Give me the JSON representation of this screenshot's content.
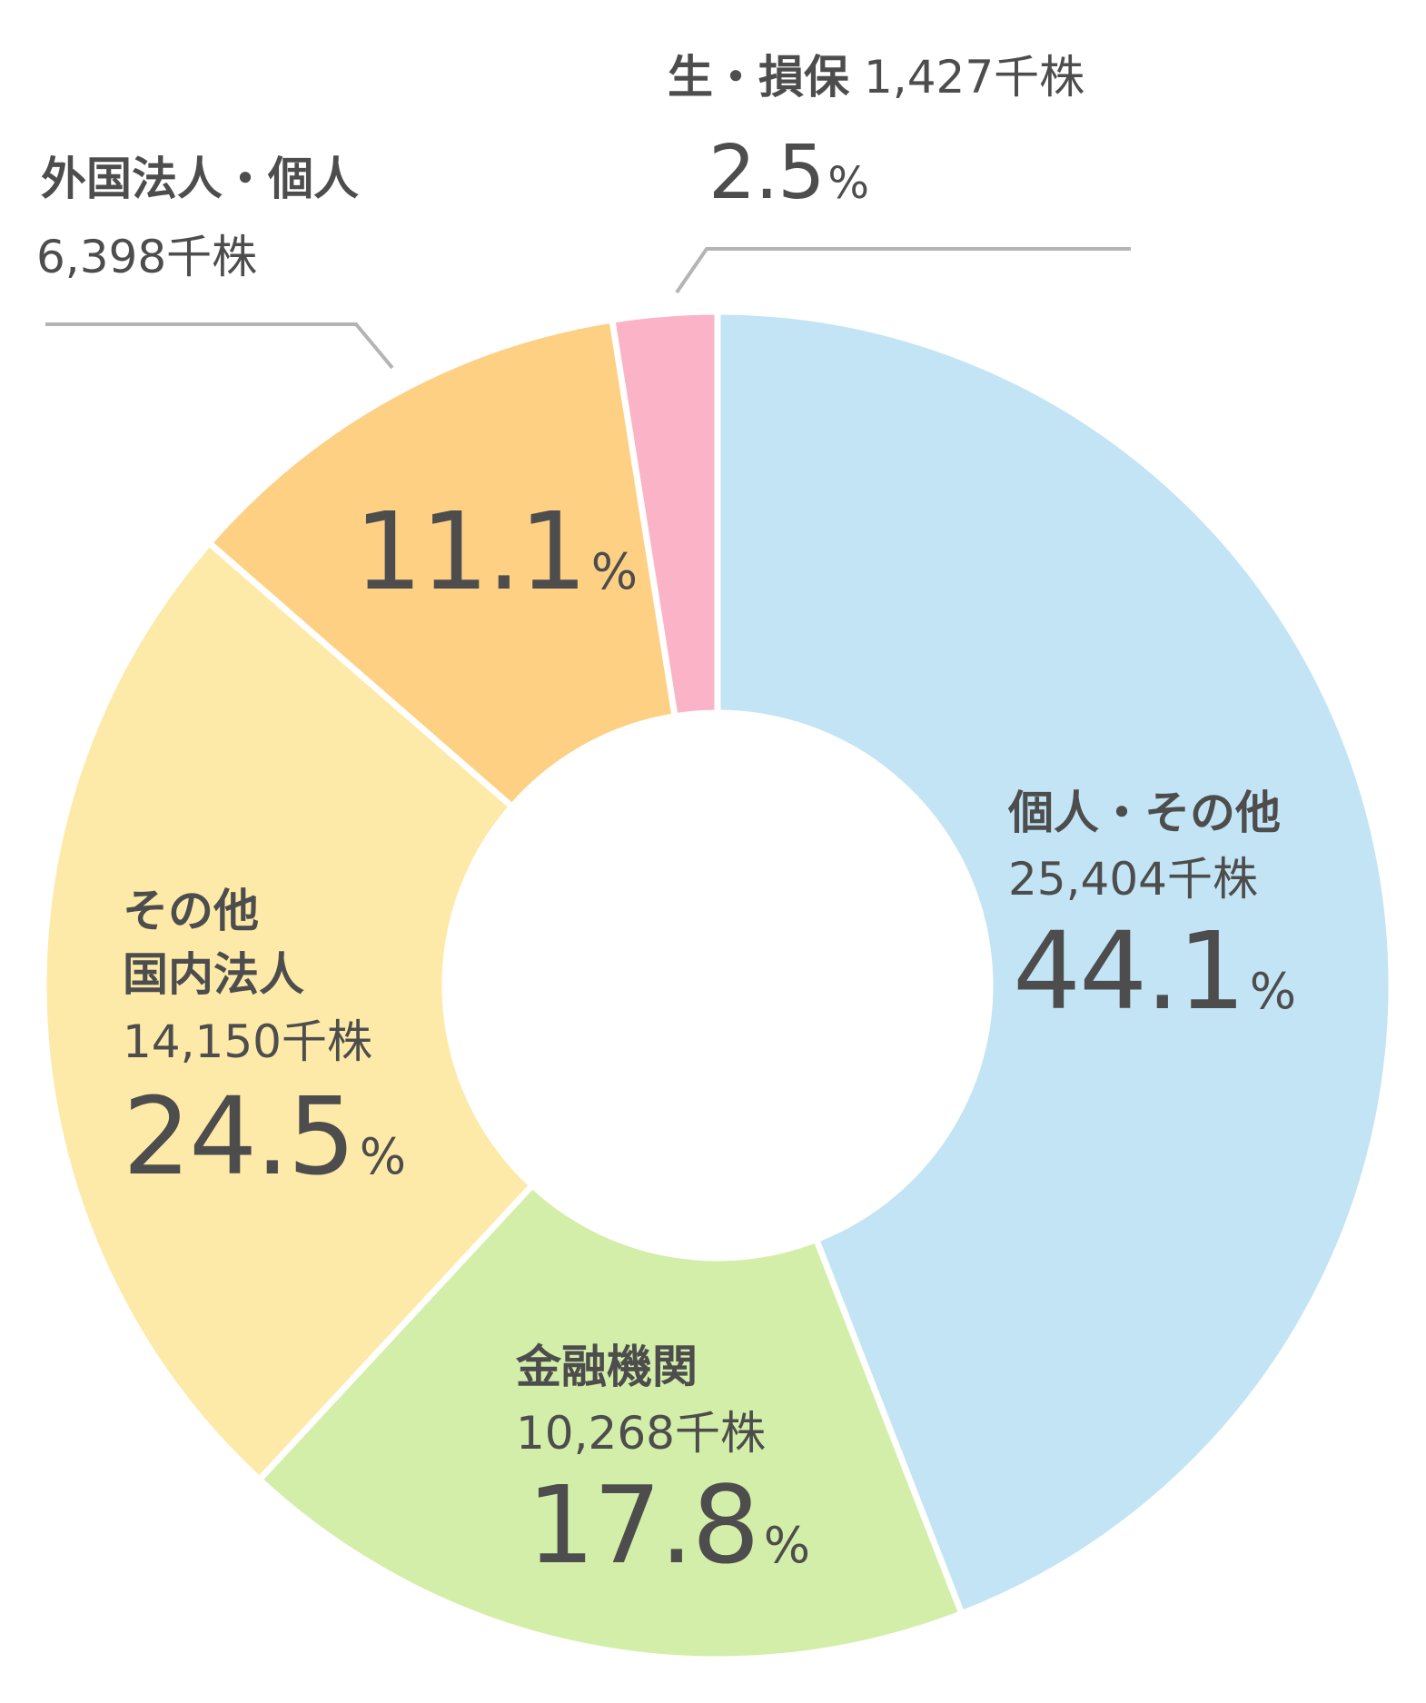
{
  "chart_data": {
    "type": "pie",
    "donut": true,
    "title": "",
    "slices": [
      {
        "label": "個人・その他",
        "shares": "25,404千株",
        "percent": 44.1,
        "percent_text": "44.1",
        "color": "#c2e4f4"
      },
      {
        "label": "金融機関",
        "shares": "10,268千株",
        "percent": 17.8,
        "percent_text": "17.8",
        "color": "#d3eea8"
      },
      {
        "label": "その他国内法人",
        "label_lines": [
          "その他",
          "国内法人"
        ],
        "shares": "14,150千株",
        "percent": 24.5,
        "percent_text": "24.5",
        "color": "#fdeaa9"
      },
      {
        "label": "外国法人・個人",
        "shares": "6,398千株",
        "percent": 11.1,
        "percent_text": "11.1",
        "color": "#fdd084"
      },
      {
        "label": "生・損保",
        "shares": "1,427千株",
        "percent": 2.5,
        "percent_text": "2.5",
        "color": "#fbb4c7"
      }
    ],
    "percent_unit": "%",
    "start": "12 o'clock",
    "direction": "clockwise"
  }
}
